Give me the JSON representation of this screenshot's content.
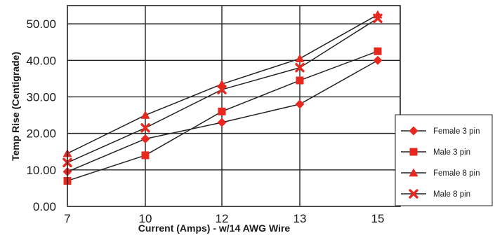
{
  "chart_data": {
    "type": "line",
    "title": "",
    "xlabel": "Current (Amps) - w/14 AWG Wire",
    "ylabel": "Temp Rise (Centigrade)",
    "categories": [
      "7",
      "10",
      "12",
      "13",
      "15"
    ],
    "ylim": [
      0,
      55
    ],
    "yticks": [
      "0.00",
      "10.00",
      "20.00",
      "30.00",
      "40.00",
      "50.00"
    ],
    "grid": "horizontal",
    "legend_position": "right",
    "line_color": "#222222",
    "marker_color": "#e8281f",
    "series": [
      {
        "name": "Female 3 pin",
        "marker": "diamond",
        "values": [
          9.5,
          18.5,
          23,
          28,
          40
        ]
      },
      {
        "name": "Male 3 pin",
        "marker": "square",
        "values": [
          7,
          14,
          26,
          34.5,
          42.5
        ]
      },
      {
        "name": "Female 8 pin",
        "marker": "triangle",
        "values": [
          14.5,
          25,
          33.5,
          40.5,
          52.5
        ]
      },
      {
        "name": "Male 8 pin",
        "marker": "x",
        "values": [
          12,
          21.5,
          32,
          38,
          51.5
        ]
      }
    ]
  }
}
